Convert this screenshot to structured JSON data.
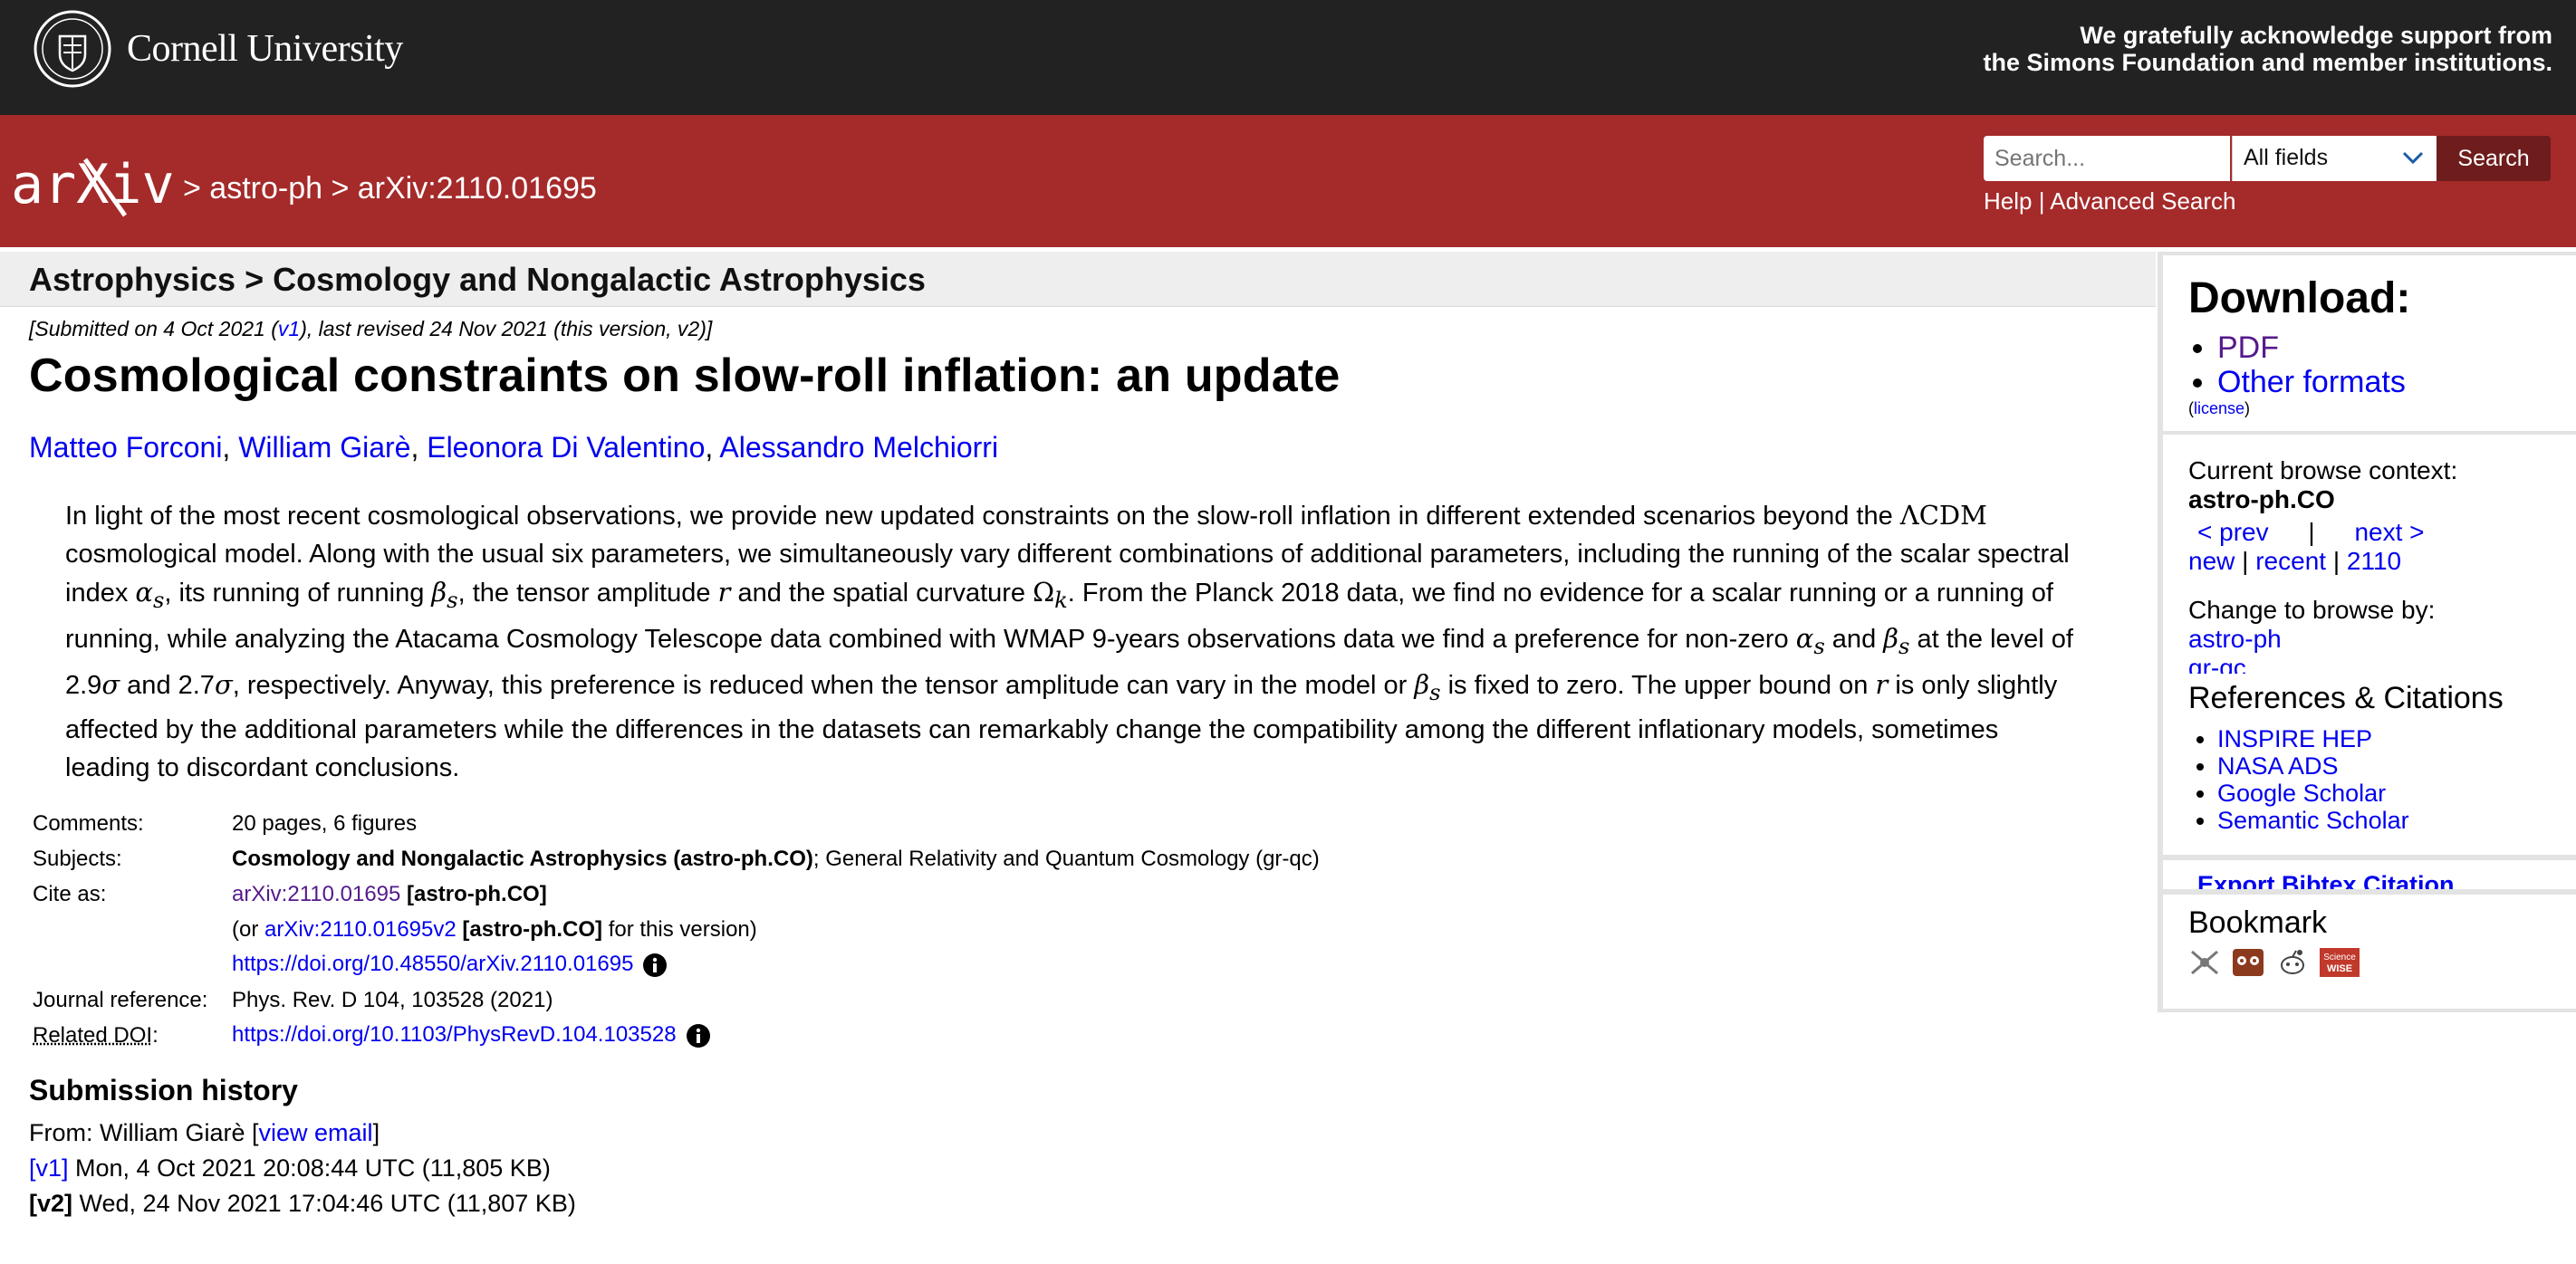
{
  "cornell": {
    "name": "Cornell University",
    "support_line1": "We gratefully acknowledge support from",
    "support_line2": "the Simons Foundation and member institutions."
  },
  "header": {
    "logo_text": "arXiv",
    "breadcrumb": "> astro-ph > arXiv:2110.01695",
    "search": {
      "placeholder": "Search...",
      "field": "All fields",
      "button": "Search"
    },
    "help": "Help",
    "advanced": "Advanced Search"
  },
  "subheader": "Astrophysics > Cosmology and Nongalactic Astrophysics",
  "paper": {
    "dateline_pre": "[Submitted on 4 Oct 2021 (",
    "dateline_v1": "v1",
    "dateline_post": "), last revised 24 Nov 2021 (this version, v2)]",
    "title": "Cosmological constraints on slow-roll inflation: an update",
    "authors": [
      "Matteo Forconi",
      "William Giarè",
      "Eleonora Di Valentino",
      "Alessandro Melchiorri"
    ],
    "abstract_parts": [
      "In light of the most recent cosmological observations, we provide new updated constraints on the slow-roll inflation in different extended scenarios beyond the ",
      " cosmological model. Along with the usual six parameters, we simultaneously vary different combinations of additional parameters, including the running of the scalar spectral index ",
      ", its running of running ",
      ", the tensor amplitude ",
      " and the spatial curvature ",
      ". From the Planck 2018 data, we find no evidence for a scalar running or a running of running, while analyzing the Atacama Cosmology Telescope data combined with WMAP 9-years observations data we find a preference for non-zero ",
      " and ",
      " at the level of 2.9",
      " and 2.7",
      ", respectively. Anyway, this preference is reduced when the tensor amplitude can vary in the model or ",
      " is fixed to zero. The upper bound on ",
      " is only slightly affected by the additional parameters while the differences in the datasets can remarkably change the compatibility among the different inflationary models, sometimes leading to discordant conclusions."
    ],
    "math": {
      "lcdm": "ΛCDM",
      "alpha": "α",
      "beta": "β",
      "sub_s": "s",
      "r": "r",
      "omega": "Ω",
      "sub_k": "k",
      "sigma": "σ"
    }
  },
  "meta": {
    "comments_label": "Comments:",
    "comments": "20 pages, 6 figures",
    "subjects_label": "Subjects:",
    "subjects_main": "Cosmology and Nongalactic Astrophysics (astro-ph.CO)",
    "subjects_rest": "; General Relativity and Quantum Cosmology (gr-qc)",
    "cite_label": "Cite as:",
    "cite_id": "arXiv:2110.01695",
    "cite_cat": "[astro-ph.CO]",
    "cite2_pre": "(or ",
    "cite2_id": "arXiv:2110.01695v2",
    "cite2_cat": "[astro-ph.CO]",
    "cite2_post": " for this version)",
    "doi_arxiv": "https://doi.org/10.48550/arXiv.2110.01695",
    "journal_label": "Journal reference:",
    "journal": "Phys. Rev. D 104, 103528 (2021)",
    "related_label": "Related DOI",
    "related_colon": ":",
    "related_doi": "https://doi.org/10.1103/PhysRevD.104.103528"
  },
  "history": {
    "title": "Submission history",
    "from_pre": "From: William Giarè [",
    "view_email": "view email",
    "from_post": "]",
    "v1_label": "[v1]",
    "v1_text": " Mon, 4 Oct 2021 20:08:44 UTC (11,805 KB)",
    "v2_label": "[v2]",
    "v2_text": " Wed, 24 Nov 2021 17:04:46 UTC (11,807 KB)"
  },
  "sidebar": {
    "download_title": "Download:",
    "pdf": "PDF",
    "other_formats": "Other formats",
    "license_open": "(",
    "license": "license",
    "license_close": ")",
    "ctx_label": "Current browse context:",
    "ctx_value": "astro-ph.CO",
    "prev": "< prev",
    "pipe": "|",
    "next": "next >",
    "new": "new",
    "recent": "recent",
    "month": "2110",
    "change_label": "Change to browse by:",
    "browse1": "astro-ph",
    "browse2": "gr-qc",
    "refs_title": "References & Citations",
    "refs": [
      "INSPIRE HEP",
      "NASA ADS",
      "Google Scholar",
      "Semantic Scholar"
    ],
    "bibtex": "Export Bibtex Citation",
    "bookmark_title": "Bookmark",
    "sciencewise_1": "Science",
    "sciencewise_2": "WISE"
  },
  "colors": {
    "cornell_bar": "#222222",
    "arxiv_red": "#a52a2a",
    "search_button": "#6e1c1c",
    "link": "#0000ee",
    "visited": "#551a8b"
  }
}
